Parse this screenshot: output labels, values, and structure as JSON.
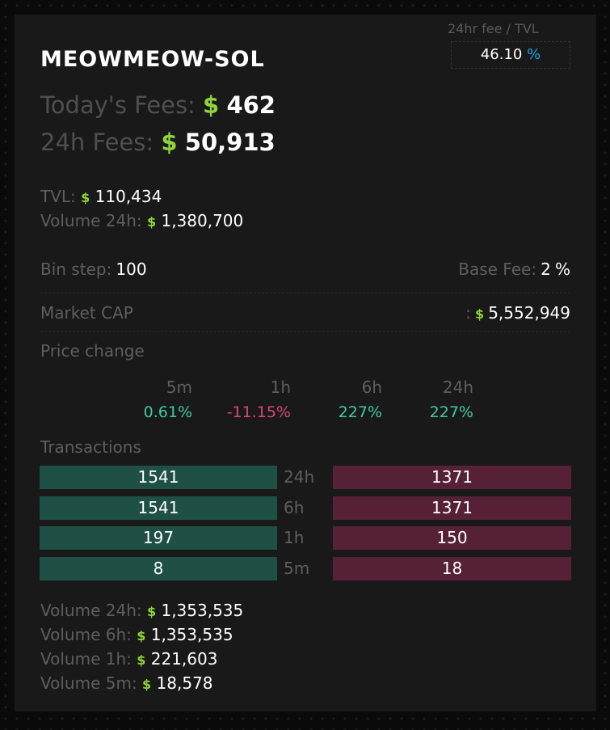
{
  "pair": {
    "title": "MEOWMEOW-SOL"
  },
  "fee_tvl": {
    "label": "24hr fee / TVL",
    "value": "46.10",
    "unit": "%"
  },
  "fees": {
    "today_label": "Today's Fees:",
    "today_value": "462",
    "h24_label": "24h Fees:",
    "h24_value": "50,913",
    "currency": "$"
  },
  "stats": {
    "tvl_label": "TVL:",
    "tvl_value": "110,434",
    "volume_label": "Volume 24h:",
    "volume_value": "1,380,700"
  },
  "bin": {
    "label": "Bin step:",
    "value": "100"
  },
  "base_fee": {
    "label": "Base Fee:",
    "value": "2",
    "unit": "%"
  },
  "market_cap": {
    "label": "Market CAP",
    "separator": ":",
    "value": "5,552,949"
  },
  "price_change": {
    "title": "Price change",
    "items": [
      {
        "period": "5m",
        "value": "0.61%",
        "color": "#3ec9a7"
      },
      {
        "period": "1h",
        "value": "-11.15%",
        "color": "#e0447a"
      },
      {
        "period": "6h",
        "value": "227%",
        "color": "#3ec9a7"
      },
      {
        "period": "24h",
        "value": "227%",
        "color": "#3ec9a7"
      }
    ]
  },
  "transactions": {
    "title": "Transactions",
    "rows": [
      {
        "period": "24h",
        "buys": "1541",
        "sells": "1371"
      },
      {
        "period": "6h",
        "buys": "1541",
        "sells": "1371"
      },
      {
        "period": "1h",
        "buys": "197",
        "sells": "150"
      },
      {
        "period": "5m",
        "buys": "8",
        "sells": "18"
      }
    ]
  },
  "volumes": [
    {
      "label": "Volume 24h:",
      "value": "1,353,535"
    },
    {
      "label": "Volume 6h:",
      "value": "1,353,535"
    },
    {
      "label": "Volume 1h:",
      "value": "221,603"
    },
    {
      "label": "Volume 5m:",
      "value": "18,578"
    }
  ],
  "colors": {
    "positive": "#3ec9a7",
    "negative": "#e0447a",
    "buy_bg": "#1e5046",
    "sell_bg": "#562136",
    "dollar": "#8fd43a",
    "percent": "#1fa3df"
  }
}
